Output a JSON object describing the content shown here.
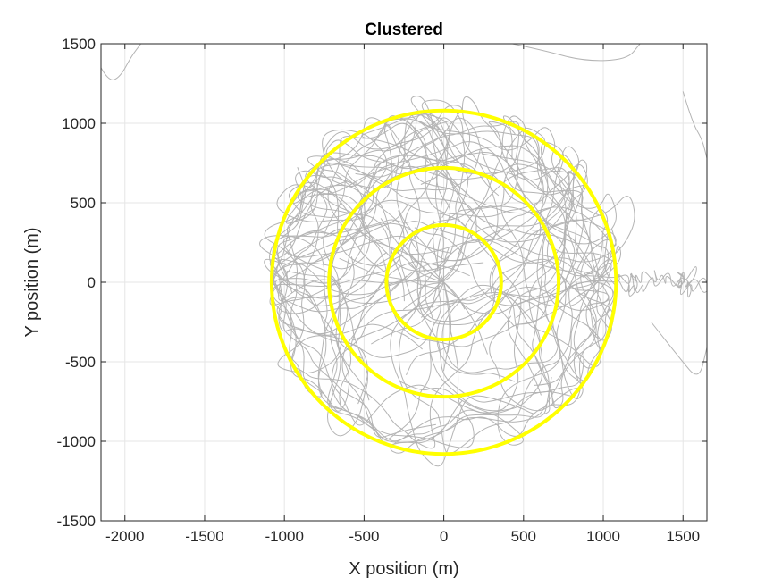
{
  "chart_data": {
    "type": "line",
    "title": "Clustered",
    "xlabel": "X position (m)",
    "ylabel": "Y position (m)",
    "xlim": [
      -2150,
      1650
    ],
    "ylim": [
      -1500,
      1500
    ],
    "xticks": [
      -2000,
      -1500,
      -1000,
      -500,
      0,
      500,
      1000,
      1500
    ],
    "yticks": [
      -1500,
      -1000,
      -500,
      0,
      500,
      1000,
      1500
    ],
    "grid": true,
    "colors": {
      "trajectories": "#b4b4b4",
      "rings": "#ffff00",
      "grid": "#e6e6e6",
      "axes": "#262626"
    },
    "rings": {
      "center": [
        0,
        0
      ],
      "radii": [
        360,
        720,
        1080
      ]
    },
    "trajectories": {
      "count": 45,
      "points_per_track": 40,
      "note_visible_region": "random-walk tracks concentrated within about 1100 m of the origin"
    },
    "stray_tracks": [
      {
        "name": "upper-left",
        "points": [
          [
            -2150,
            1350
          ],
          [
            -2100,
            1260
          ],
          [
            -2030,
            1290
          ],
          [
            -1960,
            1420
          ],
          [
            -1900,
            1500
          ]
        ]
      },
      {
        "name": "right-edge",
        "points": [
          [
            1500,
            1200
          ],
          [
            1560,
            1000
          ],
          [
            1620,
            900
          ],
          [
            1650,
            780
          ]
        ]
      },
      {
        "name": "lower-right",
        "points": [
          [
            1300,
            -250
          ],
          [
            1480,
            -480
          ],
          [
            1600,
            -620
          ],
          [
            1650,
            -410
          ]
        ]
      },
      {
        "name": "top-right-arc",
        "points": [
          [
            430,
            1500
          ],
          [
            620,
            1460
          ],
          [
            880,
            1390
          ],
          [
            1150,
            1400
          ],
          [
            1230,
            1500
          ]
        ]
      }
    ]
  }
}
